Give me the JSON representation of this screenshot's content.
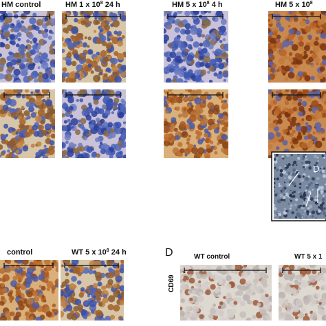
{
  "top_labels": [
    {
      "text": "HM control"
    },
    {
      "text": "HM 1 x 10",
      "sup": "8",
      "suffix": " 24 h"
    },
    {
      "text": "HM 5 x 10",
      "sup": "8",
      "suffix": " 4 h"
    },
    {
      "text": "HM 5 x 10",
      "sup": "8"
    }
  ],
  "inset_label": "D",
  "bottom_left_labels": [
    {
      "text": "control"
    },
    {
      "text": "WT 5 x 10",
      "sup": "8",
      "suffix": " 24 h"
    }
  ],
  "panel_letter": "D",
  "bottom_right_labels": [
    {
      "text": "WT control"
    },
    {
      "text": "WT 5 x 1"
    }
  ],
  "side_label": "CD69"
}
